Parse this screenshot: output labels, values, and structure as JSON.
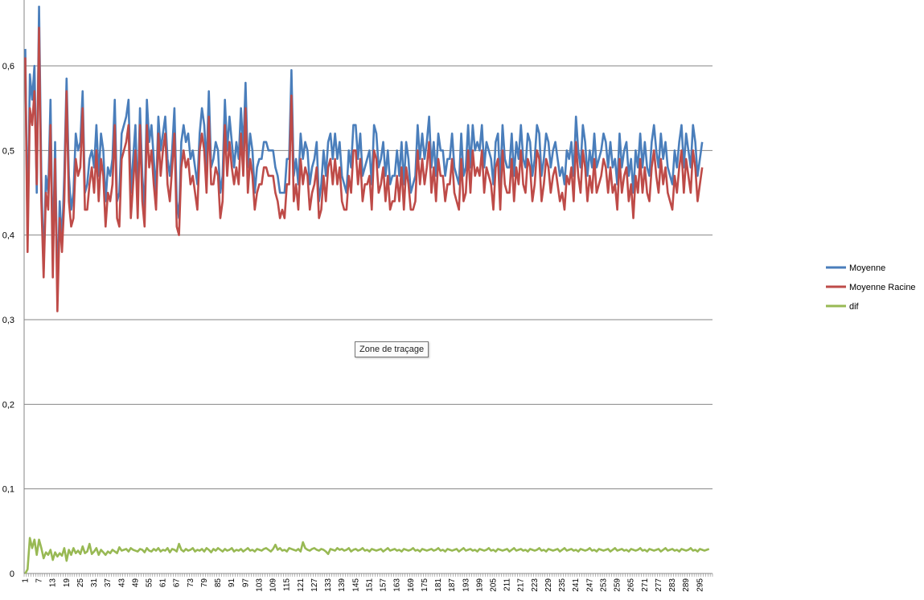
{
  "chart_data": {
    "type": "line",
    "title": "",
    "xlabel": "",
    "ylabel": "",
    "ylim": [
      0,
      0.65
    ],
    "ytick_labels": [
      "0",
      "0,1",
      "0,2",
      "0,3",
      "0,4",
      "0,5",
      "0,6"
    ],
    "grid": true,
    "legend_position": "right",
    "x_start": 1,
    "x_end": 300,
    "x_tick_labels": [
      "1",
      "7",
      "13",
      "19",
      "25",
      "31",
      "37",
      "43",
      "49",
      "55",
      "61",
      "67",
      "73",
      "79",
      "85",
      "91",
      "97",
      "103",
      "109",
      "115",
      "121",
      "127",
      "133",
      "139",
      "145",
      "151",
      "157",
      "163",
      "169",
      "175",
      "181",
      "187",
      "193",
      "199",
      "205",
      "211",
      "217",
      "223",
      "229",
      "235",
      "241",
      "247",
      "253",
      "259",
      "265",
      "271",
      "277",
      "283",
      "289",
      "295"
    ],
    "series": [
      {
        "name": "Moyenne",
        "color": "#4a7ebb",
        "values": [
          0.62,
          0.4,
          0.59,
          0.56,
          0.6,
          0.45,
          0.67,
          0.47,
          0.36,
          0.47,
          0.45,
          0.56,
          0.37,
          0.51,
          0.33,
          0.44,
          0.39,
          0.47,
          0.585,
          0.47,
          0.43,
          0.45,
          0.52,
          0.5,
          0.51,
          0.57,
          0.45,
          0.46,
          0.49,
          0.5,
          0.48,
          0.53,
          0.47,
          0.52,
          0.5,
          0.44,
          0.48,
          0.47,
          0.49,
          0.56,
          0.44,
          0.45,
          0.52,
          0.53,
          0.54,
          0.56,
          0.45,
          0.49,
          0.53,
          0.44,
          0.55,
          0.47,
          0.43,
          0.56,
          0.51,
          0.53,
          0.49,
          0.45,
          0.54,
          0.5,
          0.52,
          0.54,
          0.49,
          0.47,
          0.5,
          0.55,
          0.44,
          0.42,
          0.51,
          0.53,
          0.51,
          0.52,
          0.49,
          0.5,
          0.48,
          0.46,
          0.52,
          0.55,
          0.53,
          0.48,
          0.57,
          0.48,
          0.49,
          0.51,
          0.5,
          0.45,
          0.47,
          0.56,
          0.5,
          0.54,
          0.51,
          0.48,
          0.51,
          0.49,
          0.55,
          0.5,
          0.58,
          0.48,
          0.52,
          0.5,
          0.45,
          0.48,
          0.49,
          0.49,
          0.51,
          0.51,
          0.5,
          0.5,
          0.5,
          0.48,
          0.47,
          0.45,
          0.45,
          0.45,
          0.49,
          0.49,
          0.595,
          0.47,
          0.49,
          0.46,
          0.52,
          0.49,
          0.51,
          0.5,
          0.46,
          0.48,
          0.49,
          0.51,
          0.44,
          0.46,
          0.5,
          0.47,
          0.51,
          0.52,
          0.49,
          0.52,
          0.49,
          0.51,
          0.47,
          0.46,
          0.45,
          0.5,
          0.48,
          0.53,
          0.53,
          0.49,
          0.52,
          0.47,
          0.48,
          0.49,
          0.5,
          0.46,
          0.53,
          0.52,
          0.48,
          0.49,
          0.51,
          0.47,
          0.5,
          0.46,
          0.47,
          0.47,
          0.5,
          0.47,
          0.51,
          0.46,
          0.51,
          0.49,
          0.45,
          0.46,
          0.47,
          0.53,
          0.49,
          0.52,
          0.49,
          0.51,
          0.54,
          0.48,
          0.51,
          0.47,
          0.52,
          0.5,
          0.5,
          0.47,
          0.49,
          0.49,
          0.52,
          0.48,
          0.47,
          0.46,
          0.52,
          0.47,
          0.48,
          0.53,
          0.48,
          0.53,
          0.5,
          0.51,
          0.5,
          0.53,
          0.48,
          0.51,
          0.5,
          0.49,
          0.46,
          0.51,
          0.52,
          0.46,
          0.53,
          0.49,
          0.48,
          0.48,
          0.52,
          0.47,
          0.51,
          0.49,
          0.53,
          0.49,
          0.48,
          0.52,
          0.51,
          0.47,
          0.49,
          0.53,
          0.52,
          0.47,
          0.49,
          0.52,
          0.51,
          0.48,
          0.5,
          0.51,
          0.49,
          0.47,
          0.48,
          0.46,
          0.5,
          0.49,
          0.51,
          0.47,
          0.54,
          0.5,
          0.48,
          0.53,
          0.51,
          0.47,
          0.5,
          0.48,
          0.52,
          0.48,
          0.49,
          0.5,
          0.52,
          0.51,
          0.48,
          0.51,
          0.48,
          0.49,
          0.46,
          0.52,
          0.48,
          0.5,
          0.51,
          0.47,
          0.49,
          0.45,
          0.5,
          0.48,
          0.52,
          0.48,
          0.51,
          0.48,
          0.47,
          0.51,
          0.53,
          0.5,
          0.48,
          0.52,
          0.49,
          0.51,
          0.48,
          0.47,
          0.46,
          0.5,
          0.48,
          0.51,
          0.53,
          0.48,
          0.52,
          0.5,
          0.48,
          0.53,
          0.51,
          0.47,
          0.49,
          0.51
        ]
      },
      {
        "name": "Moyenne Racine",
        "color": "#be4b48",
        "values": [
          0.61,
          0.38,
          0.55,
          0.53,
          0.57,
          0.46,
          0.645,
          0.44,
          0.35,
          0.45,
          0.43,
          0.53,
          0.35,
          0.49,
          0.31,
          0.42,
          0.38,
          0.44,
          0.57,
          0.44,
          0.41,
          0.42,
          0.49,
          0.47,
          0.48,
          0.55,
          0.43,
          0.43,
          0.46,
          0.48,
          0.45,
          0.5,
          0.44,
          0.49,
          0.47,
          0.41,
          0.45,
          0.44,
          0.46,
          0.53,
          0.42,
          0.41,
          0.49,
          0.5,
          0.51,
          0.53,
          0.42,
          0.46,
          0.5,
          0.42,
          0.53,
          0.44,
          0.41,
          0.53,
          0.48,
          0.5,
          0.46,
          0.43,
          0.52,
          0.47,
          0.5,
          0.52,
          0.46,
          0.44,
          0.48,
          0.52,
          0.41,
          0.4,
          0.48,
          0.5,
          0.48,
          0.49,
          0.46,
          0.47,
          0.45,
          0.43,
          0.5,
          0.52,
          0.5,
          0.45,
          0.54,
          0.46,
          0.46,
          0.48,
          0.47,
          0.42,
          0.44,
          0.53,
          0.47,
          0.51,
          0.48,
          0.46,
          0.48,
          0.46,
          0.52,
          0.47,
          0.55,
          0.45,
          0.49,
          0.47,
          0.43,
          0.45,
          0.46,
          0.46,
          0.48,
          0.48,
          0.47,
          0.47,
          0.47,
          0.45,
          0.44,
          0.42,
          0.43,
          0.42,
          0.46,
          0.46,
          0.565,
          0.44,
          0.46,
          0.43,
          0.49,
          0.46,
          0.48,
          0.47,
          0.43,
          0.45,
          0.46,
          0.48,
          0.42,
          0.43,
          0.47,
          0.44,
          0.48,
          0.49,
          0.46,
          0.49,
          0.46,
          0.48,
          0.44,
          0.43,
          0.43,
          0.47,
          0.45,
          0.5,
          0.5,
          0.46,
          0.49,
          0.44,
          0.46,
          0.46,
          0.47,
          0.43,
          0.5,
          0.49,
          0.45,
          0.46,
          0.48,
          0.44,
          0.47,
          0.43,
          0.44,
          0.44,
          0.47,
          0.44,
          0.48,
          0.43,
          0.48,
          0.46,
          0.43,
          0.43,
          0.44,
          0.5,
          0.46,
          0.49,
          0.46,
          0.48,
          0.51,
          0.45,
          0.48,
          0.44,
          0.49,
          0.47,
          0.47,
          0.44,
          0.46,
          0.46,
          0.49,
          0.45,
          0.44,
          0.43,
          0.49,
          0.44,
          0.45,
          0.5,
          0.45,
          0.5,
          0.47,
          0.48,
          0.47,
          0.5,
          0.45,
          0.48,
          0.47,
          0.46,
          0.43,
          0.48,
          0.49,
          0.43,
          0.5,
          0.46,
          0.45,
          0.45,
          0.49,
          0.44,
          0.48,
          0.46,
          0.5,
          0.46,
          0.45,
          0.49,
          0.48,
          0.44,
          0.46,
          0.5,
          0.49,
          0.44,
          0.46,
          0.49,
          0.48,
          0.45,
          0.47,
          0.48,
          0.46,
          0.44,
          0.45,
          0.43,
          0.47,
          0.46,
          0.48,
          0.44,
          0.51,
          0.47,
          0.45,
          0.5,
          0.48,
          0.44,
          0.47,
          0.45,
          0.49,
          0.45,
          0.46,
          0.47,
          0.49,
          0.48,
          0.45,
          0.48,
          0.45,
          0.46,
          0.43,
          0.49,
          0.45,
          0.47,
          0.48,
          0.44,
          0.46,
          0.42,
          0.47,
          0.45,
          0.49,
          0.45,
          0.48,
          0.45,
          0.44,
          0.48,
          0.5,
          0.47,
          0.45,
          0.49,
          0.46,
          0.48,
          0.45,
          0.44,
          0.43,
          0.47,
          0.45,
          0.48,
          0.5,
          0.45,
          0.49,
          0.47,
          0.45,
          0.5,
          0.48,
          0.44,
          0.46,
          0.48
        ]
      },
      {
        "name": "dif",
        "color": "#98b954",
        "values": [
          0.0,
          0.005,
          0.042,
          0.03,
          0.04,
          0.022,
          0.04,
          0.03,
          0.018,
          0.025,
          0.022,
          0.028,
          0.016,
          0.025,
          0.02,
          0.024,
          0.021,
          0.03,
          0.015,
          0.028,
          0.022,
          0.03,
          0.024,
          0.027,
          0.023,
          0.032,
          0.024,
          0.026,
          0.035,
          0.023,
          0.026,
          0.03,
          0.022,
          0.028,
          0.025,
          0.022,
          0.026,
          0.024,
          0.028,
          0.026,
          0.024,
          0.031,
          0.027,
          0.028,
          0.029,
          0.026,
          0.03,
          0.028,
          0.027,
          0.026,
          0.029,
          0.028,
          0.025,
          0.03,
          0.027,
          0.026,
          0.029,
          0.027,
          0.03,
          0.026,
          0.028,
          0.027,
          0.03,
          0.025,
          0.029,
          0.028,
          0.026,
          0.035,
          0.028,
          0.026,
          0.029,
          0.027,
          0.028,
          0.03,
          0.026,
          0.028,
          0.027,
          0.029,
          0.026,
          0.03,
          0.028,
          0.025,
          0.029,
          0.027,
          0.03,
          0.028,
          0.026,
          0.029,
          0.027,
          0.028,
          0.03,
          0.026,
          0.028,
          0.027,
          0.029,
          0.026,
          0.028,
          0.03,
          0.027,
          0.028,
          0.026,
          0.029,
          0.028,
          0.027,
          0.029,
          0.03,
          0.028,
          0.026,
          0.029,
          0.034,
          0.028,
          0.03,
          0.027,
          0.028,
          0.026,
          0.03,
          0.029,
          0.028,
          0.027,
          0.029,
          0.026,
          0.037,
          0.03,
          0.028,
          0.027,
          0.029,
          0.03,
          0.028,
          0.027,
          0.029,
          0.028,
          0.026,
          0.023,
          0.029,
          0.028,
          0.027,
          0.03,
          0.028,
          0.029,
          0.027,
          0.028,
          0.03,
          0.026,
          0.028,
          0.029,
          0.027,
          0.028,
          0.03,
          0.027,
          0.028,
          0.026,
          0.029,
          0.028,
          0.027,
          0.028,
          0.029,
          0.026,
          0.028,
          0.03,
          0.027,
          0.028,
          0.029,
          0.027,
          0.028,
          0.026,
          0.029,
          0.028,
          0.027,
          0.028,
          0.03,
          0.027,
          0.028,
          0.026,
          0.029,
          0.028,
          0.027,
          0.028,
          0.029,
          0.027,
          0.028,
          0.03,
          0.027,
          0.028,
          0.026,
          0.029,
          0.028,
          0.027,
          0.028,
          0.029,
          0.026,
          0.028,
          0.03,
          0.027,
          0.028,
          0.029,
          0.027,
          0.028,
          0.026,
          0.029,
          0.028,
          0.027,
          0.028,
          0.03,
          0.027,
          0.028,
          0.026,
          0.029,
          0.028,
          0.027,
          0.028,
          0.029,
          0.026,
          0.028,
          0.03,
          0.027,
          0.028,
          0.029,
          0.027,
          0.028,
          0.026,
          0.029,
          0.028,
          0.027,
          0.028,
          0.03,
          0.027,
          0.028,
          0.026,
          0.029,
          0.028,
          0.027,
          0.028,
          0.029,
          0.026,
          0.028,
          0.03,
          0.027,
          0.028,
          0.029,
          0.027,
          0.028,
          0.026,
          0.029,
          0.028,
          0.027,
          0.028,
          0.03,
          0.027,
          0.028,
          0.026,
          0.029,
          0.028,
          0.027,
          0.028,
          0.029,
          0.026,
          0.028,
          0.03,
          0.027,
          0.028,
          0.029,
          0.027,
          0.028,
          0.026,
          0.029,
          0.028,
          0.027,
          0.028,
          0.03,
          0.027,
          0.028,
          0.026,
          0.029,
          0.028,
          0.027,
          0.028,
          0.029,
          0.026,
          0.028,
          0.03,
          0.027,
          0.028,
          0.029,
          0.027,
          0.028,
          0.026,
          0.029,
          0.028,
          0.027,
          0.028,
          0.03,
          0.027,
          0.028,
          0.026,
          0.029,
          0.028,
          0.027,
          0.028,
          0.029
        ]
      }
    ]
  },
  "tooltip": {
    "label": "Zone de traçage"
  }
}
